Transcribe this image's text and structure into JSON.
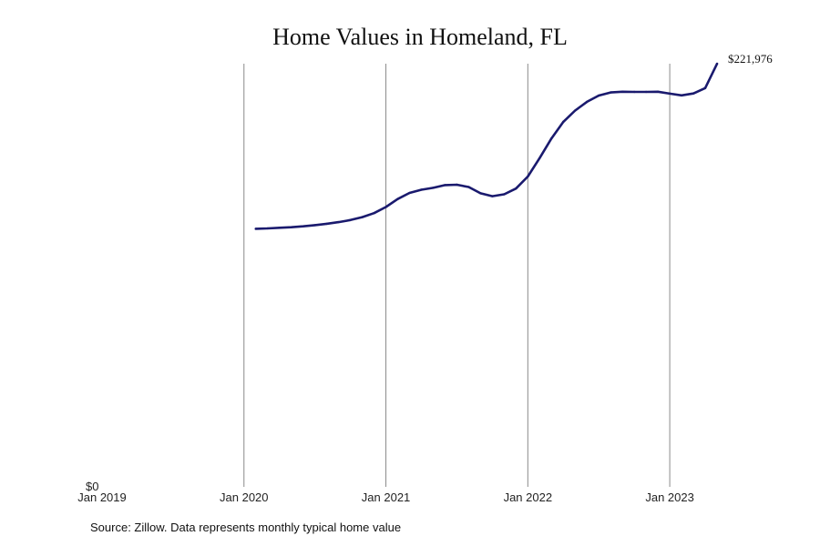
{
  "chart_data": {
    "type": "line",
    "title": "Home Values in Homeland, FL",
    "y_tick_label": "$0",
    "x_tick_labels": [
      "Jan 2019",
      "Jan 2020",
      "Jan 2021",
      "Jan 2022",
      "Jan 2023"
    ],
    "x_range": [
      "2019-01",
      "2023-06"
    ],
    "ylim": [
      0,
      222000
    ],
    "grid": "vertical",
    "line_color": "#1a1a6e",
    "series": [
      {
        "x": [
          "2020-02",
          "2020-03",
          "2020-04",
          "2020-05",
          "2020-06",
          "2020-07",
          "2020-08",
          "2020-09",
          "2020-10",
          "2020-11",
          "2020-12",
          "2021-01",
          "2021-02",
          "2021-03",
          "2021-04",
          "2021-05",
          "2021-06",
          "2021-07",
          "2021-08",
          "2021-09",
          "2021-10",
          "2021-11",
          "2021-12",
          "2022-01",
          "2022-02",
          "2022-03",
          "2022-04",
          "2022-05",
          "2022-06",
          "2022-07",
          "2022-08",
          "2022-09",
          "2022-10",
          "2022-11",
          "2022-12",
          "2023-01",
          "2023-02",
          "2023-03",
          "2023-04",
          "2023-05"
        ],
        "values": [
          135400,
          135600,
          135900,
          136200,
          136700,
          137300,
          138000,
          138900,
          140000,
          141500,
          143600,
          146800,
          151000,
          154200,
          155900,
          156900,
          158300,
          158500,
          157300,
          154000,
          152500,
          153500,
          156500,
          162800,
          172500,
          182800,
          191500,
          197400,
          202000,
          205300,
          206900,
          207300,
          207200,
          207200,
          207300,
          206300,
          205400,
          206400,
          209200,
          221976
        ]
      }
    ],
    "end_label": "$221,976"
  },
  "source_note": "Source: Zillow. Data represents monthly typical home value"
}
